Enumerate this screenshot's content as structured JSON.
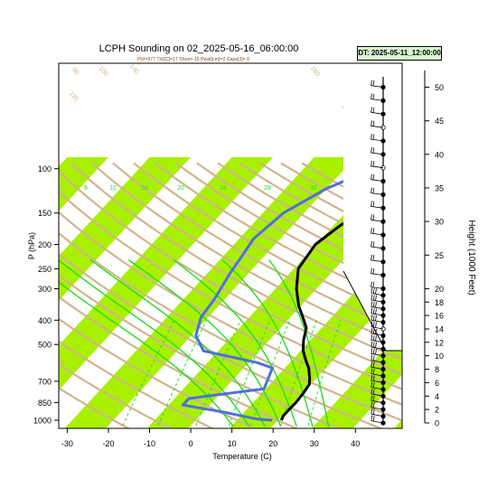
{
  "chart_data": {
    "type": "line",
    "chart_kind": "skew-T log-P sounding",
    "title": "LCPH Sounding on 02_2025-05-16_06:00:00",
    "subtitle": "Plcl=977 Tlcl[C]=17 Shox=-15 Pwat[cm]=2 Cape[J]= 0",
    "dt_label": "DT: 2025-05-11_12:00:00",
    "xlabel": "Temperature (C)",
    "ylabel": "P (hPa)",
    "y2label": "Height (1000 Feet)",
    "x_ticks": [
      -30,
      -20,
      -10,
      0,
      10,
      20,
      30,
      40
    ],
    "y_ticks": [
      100,
      150,
      200,
      250,
      300,
      400,
      500,
      700,
      850,
      1000
    ],
    "height_ticks": [
      0,
      2,
      4,
      6,
      8,
      10,
      12,
      14,
      16,
      18,
      20,
      25,
      30,
      35,
      40,
      45,
      50
    ],
    "xlim": [
      -33,
      50
    ],
    "ylim": [
      1050,
      100
    ],
    "y_scale": "log",
    "isotherm_labels": [
      -30,
      -20,
      -10,
      0,
      10,
      20,
      30
    ],
    "dry_adiabat_labels": [
      80,
      100,
      120,
      140,
      160
    ],
    "moist_adiabat_labels": [
      8,
      12,
      16,
      20,
      24,
      28,
      32
    ],
    "colors": {
      "temperature": "#000000",
      "dewpoint": "#4f6fdc",
      "isotherm_band": "#a8f000",
      "dry_adiabat": "#d2b48c",
      "moist_adiabat": "#22dd22",
      "mixing_ratio": "#22dd22",
      "label_tan": "#d2b48c"
    },
    "series": [
      {
        "name": "Temperature",
        "points": [
          [
            20.8,
            1000
          ],
          [
            20.3,
            960
          ],
          [
            20.3,
            900
          ],
          [
            20.4,
            850
          ],
          [
            20.1,
            780
          ],
          [
            19.6,
            720
          ],
          [
            18.3,
            680
          ],
          [
            15.8,
            620
          ],
          [
            13.5,
            580
          ],
          [
            10.6,
            530
          ],
          [
            8.3,
            480
          ],
          [
            6.3,
            430
          ],
          [
            3.9,
            400
          ],
          [
            -0.6,
            350
          ],
          [
            -4.9,
            300
          ],
          [
            -8.9,
            250
          ],
          [
            -10.2,
            200
          ],
          [
            -8.5,
            170
          ],
          [
            -6.5,
            150
          ],
          [
            -1.9,
            120
          ],
          [
            0.6,
            110
          ],
          [
            3.0,
            100
          ]
        ]
      },
      {
        "name": "Dewpoint",
        "points": [
          [
            18.6,
            1000
          ],
          [
            14.8,
            990
          ],
          [
            5.2,
            930
          ],
          [
            -6.5,
            870
          ],
          [
            -6.5,
            820
          ],
          [
            9.6,
            750
          ],
          [
            7.0,
            620
          ],
          [
            2.0,
            590
          ],
          [
            -13.6,
            530
          ],
          [
            -18.9,
            460
          ],
          [
            -21.7,
            390
          ],
          [
            -22.5,
            330
          ],
          [
            -24.5,
            260
          ],
          [
            -25.5,
            220
          ],
          [
            -26.5,
            190
          ],
          [
            -25.0,
            150
          ],
          [
            -20.0,
            120
          ],
          [
            -13.1,
            100
          ]
        ]
      }
    ],
    "wind_barbs_levels_kft": [
      0,
      1,
      2,
      3,
      4,
      5,
      6,
      7,
      8,
      9,
      10,
      11,
      12,
      13,
      14,
      15,
      16,
      17,
      18,
      19,
      20,
      22,
      24,
      26,
      28,
      30,
      32,
      34,
      36,
      38,
      40,
      42,
      44,
      46,
      48,
      50
    ]
  }
}
